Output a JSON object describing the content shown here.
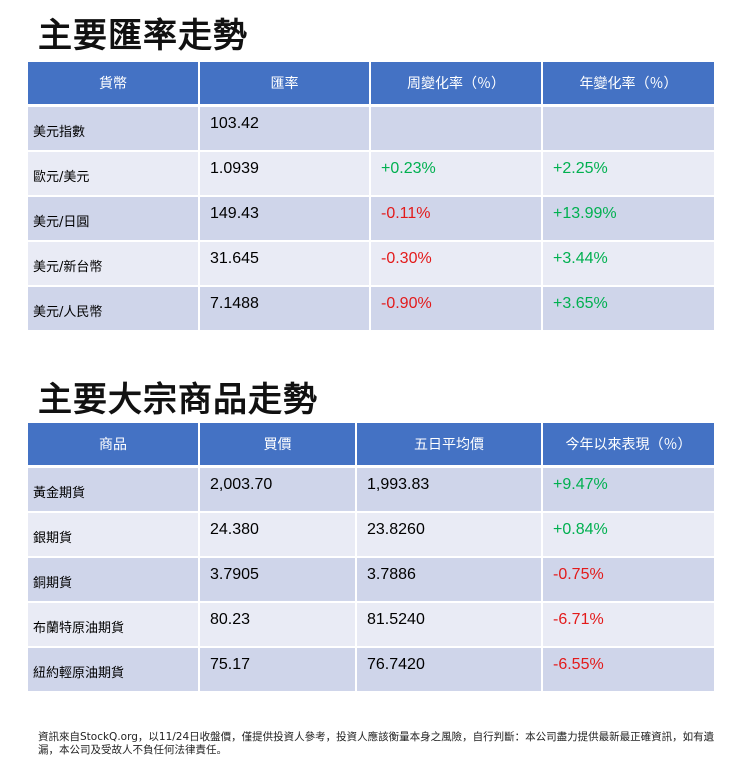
{
  "fx": {
    "title": "主要匯率走勢",
    "headers": [
      "貨幣",
      "匯率",
      "周變化率（％）",
      "年變化率（％）"
    ],
    "rows": [
      {
        "name": "美元指數",
        "rate": "103.42",
        "weekly": "",
        "yearly": ""
      },
      {
        "name": "歐元/美元",
        "rate": "1.0939",
        "weekly": "+0.23%",
        "yearly": "+2.25%"
      },
      {
        "name": "美元/日圓",
        "rate": "149.43",
        "weekly": "-0.11%",
        "yearly": "+13.99%"
      },
      {
        "name": "美元/新台幣",
        "rate": "31.645",
        "weekly": "-0.30%",
        "yearly": "+3.44%"
      },
      {
        "name": "美元/人民幣",
        "rate": "7.1488",
        "weekly": "-0.90%",
        "yearly": "+3.65%"
      }
    ]
  },
  "commodities": {
    "title": "主要大宗商品走勢",
    "headers": [
      "商品",
      "買價",
      "五日平均價",
      "今年以來表現（％）"
    ],
    "rows": [
      {
        "name": "黃金期貨",
        "bid": "2,003.70",
        "avg5": "1,993.83",
        "ytd": "+9.47%"
      },
      {
        "name": "銀期貨",
        "bid": "24.380",
        "avg5": "23.8260",
        "ytd": "+0.84%"
      },
      {
        "name": "銅期貨",
        "bid": "3.7905",
        "avg5": "3.7886",
        "ytd": "-0.75%"
      },
      {
        "name": "布蘭特原油期貨",
        "bid": "80.23",
        "avg5": "81.5240",
        "ytd": "-6.71%"
      },
      {
        "name": "紐約輕原油期貨",
        "bid": "75.17",
        "avg5": "76.7420",
        "ytd": "-6.55%"
      }
    ]
  },
  "footnote": "資訊來自StockQ.org，以11/24日收盤價，僅提供投資人參考，投資人應該衡量本身之風險，自行判斷：本公司盡力提供最新最正確資訊，如有遺漏，本公司及受故人不負任何法律責任。",
  "colors": {
    "header": "#4472c4",
    "row_odd": "#cfd5ea",
    "row_even": "#e9ebf5",
    "positive": "#00b050",
    "negative": "#e31a1a"
  }
}
